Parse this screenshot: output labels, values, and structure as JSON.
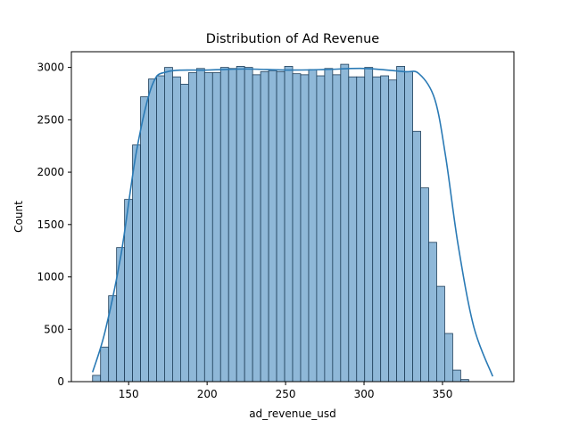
{
  "chart_data": {
    "type": "bar",
    "title": "Distribution of Ad Revenue",
    "xlabel": "ad_revenue_usd",
    "ylabel": "Count",
    "xlim": [
      113.5,
      395.5
    ],
    "ylim": [
      0,
      3150
    ],
    "xticks": [
      150,
      200,
      250,
      300,
      350
    ],
    "yticks": [
      0,
      500,
      1000,
      1500,
      2000,
      2500,
      3000
    ],
    "bin_start": 127,
    "bin_width": 5.1,
    "values": [
      60,
      330,
      820,
      1280,
      1740,
      2260,
      2720,
      2890,
      2920,
      3000,
      2910,
      2840,
      2950,
      2990,
      2950,
      2950,
      3000,
      2990,
      3010,
      3000,
      2930,
      2960,
      2970,
      2960,
      3010,
      2940,
      2930,
      2980,
      2920,
      2990,
      2930,
      3030,
      2910,
      2910,
      3000,
      2910,
      2920,
      2880,
      3010,
      2960,
      2390,
      1850,
      1330,
      910,
      460,
      110,
      20
    ],
    "kde": {
      "name": "",
      "x": [
        127,
        135,
        145,
        155,
        165,
        175,
        200,
        225,
        250,
        275,
        300,
        325,
        335,
        345,
        352,
        360,
        370,
        382
      ],
      "y": [
        90,
        480,
        1200,
        2200,
        2830,
        2960,
        2975,
        2985,
        2975,
        2980,
        2990,
        2960,
        2940,
        2700,
        2150,
        1300,
        520,
        50
      ]
    },
    "colors": {
      "bar_fill": "#8fb8d8",
      "bar_edge": "#1f3f5a",
      "kde_line": "#2a7ab5"
    },
    "grid": false,
    "legend": "none"
  }
}
